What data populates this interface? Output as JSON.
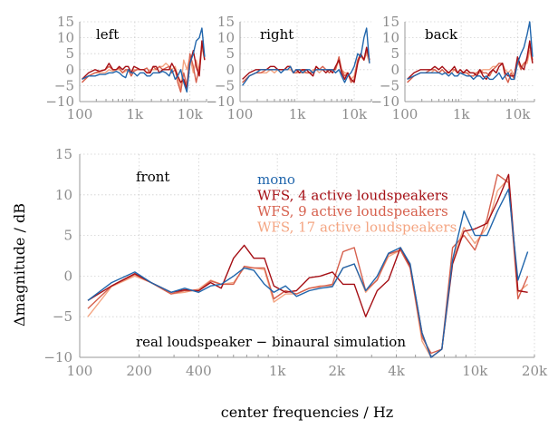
{
  "chart_data": {
    "type": "line",
    "xscale": "log",
    "colors": {
      "mono": "#2166ac",
      "wfs4": "#a50f15",
      "wfs9": "#d6604d",
      "wfs17": "#f4a582"
    },
    "series_labels": {
      "mono": "mono",
      "wfs4": "WFS, 4 active loudspeakers",
      "wfs9": "WFS, 9 active loudspeakers",
      "wfs17": "WFS, 17 active loudspeakers"
    },
    "x": [
      110,
      145,
      190,
      230,
      290,
      340,
      400,
      460,
      520,
      600,
      680,
      760,
      860,
      960,
      1100,
      1250,
      1450,
      1650,
      1900,
      2150,
      2450,
      2800,
      3200,
      3650,
      4200,
      4700,
      5400,
      6000,
      6800,
      7700,
      8800,
      10000,
      11500,
      13000,
      14800,
      16500,
      18500
    ],
    "small_xlim": [
      100,
      20000
    ],
    "small_ylim": [
      -10,
      15
    ],
    "small_yticks": [
      "15",
      "10",
      "5",
      "0",
      "−5",
      "−10"
    ],
    "small_xticks": [
      "100",
      "1k",
      "10k"
    ],
    "small_panels": [
      {
        "label": "left",
        "series": {
          "mono": [
            -3,
            -2,
            -2,
            -1.5,
            -1.5,
            -1,
            -1,
            -0.5,
            -1,
            -2,
            -2.5,
            0,
            -1,
            -1,
            -2,
            -1,
            -1,
            -2,
            -2,
            -1,
            -1,
            -1,
            -0.5,
            -1,
            -2,
            0,
            -3,
            -2,
            0,
            -4,
            -7,
            2,
            5,
            9,
            10,
            13,
            4
          ],
          "wfs4": [
            -3,
            -1,
            0,
            -0.5,
            0,
            2,
            0,
            0,
            1,
            0,
            1,
            1,
            -1,
            1,
            0.5,
            0,
            0,
            -1,
            -1,
            1,
            1,
            -1,
            0,
            0,
            0,
            2,
            0,
            -2,
            -4,
            -3,
            -6,
            2,
            6,
            1,
            -2,
            9,
            3
          ],
          "wfs9": [
            -4,
            -2,
            -1,
            -0.5,
            0,
            1,
            0,
            0,
            0.5,
            -1,
            0,
            0,
            -2,
            -0.5,
            0,
            0,
            0,
            0.5,
            -1,
            1,
            0,
            1,
            0,
            0.5,
            1,
            -1,
            0,
            -4,
            -7,
            -1,
            -5,
            5,
            1,
            -4,
            1,
            8,
            4
          ],
          "wfs17": [
            -4,
            -2,
            -1,
            -1,
            -1,
            0,
            -0.5,
            0,
            0,
            -1,
            -0.5,
            0,
            -2,
            0,
            0,
            0,
            0,
            -1,
            0,
            0,
            0,
            1,
            1,
            2,
            1,
            0,
            1,
            -2,
            -6,
            3,
            0,
            4,
            -1,
            3,
            -1,
            7,
            3
          ]
        }
      },
      {
        "label": "right",
        "series": {
          "mono": [
            -5,
            -2,
            -1,
            0,
            0,
            0,
            0,
            0,
            -1,
            0,
            0,
            1,
            -1,
            0,
            0,
            -1,
            0,
            0,
            -1,
            0,
            0,
            0,
            0,
            0,
            0,
            -1,
            0,
            -2,
            -4,
            -2,
            -1,
            1,
            5,
            4,
            10,
            13,
            2
          ],
          "wfs4": [
            -3,
            -1,
            0,
            0,
            0,
            1,
            1,
            0,
            0,
            0,
            1,
            1,
            -1,
            0,
            -1,
            0,
            0,
            -1,
            -2,
            1,
            0,
            0,
            -1,
            0,
            -1,
            1,
            3,
            -1,
            -3,
            -1,
            -3,
            -4,
            2,
            5,
            3,
            7,
            3
          ],
          "wfs9": [
            -4,
            -2,
            -1,
            -1,
            0,
            0,
            0,
            0,
            0,
            0,
            1,
            1,
            -1,
            -1,
            0,
            0,
            -1,
            -1,
            -1,
            1,
            0,
            1,
            0,
            -1,
            0,
            0,
            4,
            0,
            -2,
            -1,
            -4,
            -3,
            3,
            5,
            3,
            6,
            3
          ],
          "wfs17": [
            -4,
            -2,
            -1,
            -1,
            -1,
            0,
            -1,
            0,
            0,
            0,
            0,
            0,
            -1,
            -1,
            -1,
            -1,
            -1,
            -1,
            0,
            0,
            -1,
            0,
            0,
            0,
            0,
            0,
            3,
            0,
            -1,
            -1,
            -3,
            -2,
            3,
            4,
            3,
            5,
            2
          ]
        }
      },
      {
        "label": "back",
        "series": {
          "mono": [
            -3,
            -2,
            -1,
            -1,
            -1,
            -1,
            -1,
            -1.5,
            -1,
            -2,
            -1,
            -2,
            -2,
            -1,
            -1.5,
            -2,
            -2,
            -3,
            -2,
            -2,
            -3,
            -2,
            -3,
            -3,
            -2,
            -1,
            -3,
            -2,
            -1,
            -3,
            -3,
            2,
            5,
            7,
            11,
            15,
            4
          ],
          "wfs4": [
            -3,
            -1,
            0,
            0,
            0,
            1,
            0,
            1,
            0,
            -1,
            0,
            1,
            -1,
            0,
            -1,
            0,
            -1,
            -1,
            -2,
            0,
            -2,
            -3,
            -1,
            0,
            -1,
            1,
            2,
            -1,
            -2,
            -2,
            -2,
            4,
            1,
            0,
            4,
            9,
            2
          ],
          "wfs9": [
            -4,
            -2,
            -1,
            -1,
            0,
            0,
            -1,
            0,
            -1,
            -1,
            0,
            0,
            -1,
            -1,
            -1,
            -1,
            -2,
            -2,
            -1,
            0,
            -1,
            -1,
            -2,
            0,
            1,
            2,
            2,
            -2,
            -4,
            -1,
            -3,
            3,
            0,
            2,
            3,
            8,
            3
          ],
          "wfs17": [
            -4,
            -2,
            -1,
            -1,
            -1,
            0,
            -1,
            0,
            -1,
            -1,
            -1,
            0,
            -1,
            -1,
            -1,
            -1,
            -1,
            -1,
            -1,
            -1,
            0,
            0,
            0,
            1,
            1,
            2,
            2,
            0,
            -1,
            0,
            -2,
            2,
            1,
            2,
            2,
            6,
            2
          ]
        }
      }
    ],
    "main_panel": {
      "label": "front",
      "annotation": "real loudspeaker − binaural simulation",
      "xlabel": "center frequencies / Hz",
      "ylabel": "Δmagnitude / dB",
      "xlim": [
        100,
        20000
      ],
      "ylim": [
        -10,
        15
      ],
      "yticks": [
        "15",
        "10",
        "5",
        "0",
        "−5",
        "−10"
      ],
      "xticks": [
        {
          "v": 100,
          "label": "100"
        },
        {
          "v": 200,
          "label": "200"
        },
        {
          "v": 400,
          "label": "400"
        },
        {
          "v": 1000,
          "label": "1k"
        },
        {
          "v": 2000,
          "label": "2k"
        },
        {
          "v": 4000,
          "label": "4k"
        },
        {
          "v": 10000,
          "label": "10k"
        },
        {
          "v": 20000,
          "label": "20k"
        }
      ],
      "x": [
        110,
        145,
        190,
        230,
        290,
        340,
        400,
        460,
        520,
        600,
        680,
        760,
        860,
        960,
        1100,
        1250,
        1450,
        1650,
        1900,
        2150,
        2450,
        2800,
        3200,
        3650,
        4200,
        4700,
        5400,
        6000,
        6800,
        7700,
        8800,
        10000,
        11500,
        13000,
        14800,
        16500,
        18500
      ],
      "series": {
        "mono": [
          -3,
          -0.8,
          0.5,
          -0.8,
          -2,
          -1.5,
          -2,
          -1.2,
          -1,
          0,
          1,
          0.7,
          -1,
          -2,
          -1.2,
          -2.5,
          -1.8,
          -1.5,
          -1.3,
          1,
          1.5,
          -1.8,
          0,
          2.8,
          3.5,
          1.5,
          -7,
          -10,
          -9,
          2,
          8,
          5,
          5,
          8,
          10.7,
          -0.5,
          3
        ],
        "wfs4": [
          -3,
          -1.2,
          0.3,
          -0.8,
          -2,
          -1.7,
          -1.8,
          -0.8,
          -1.5,
          2.2,
          3.8,
          2.2,
          2.2,
          -1.2,
          -2,
          -1.8,
          -0.2,
          0,
          0.5,
          -1,
          -1,
          -5,
          -1.8,
          -0.5,
          3.5,
          1.3,
          -7,
          -10,
          -9,
          1.5,
          5.5,
          5.8,
          6.5,
          9.2,
          12.5,
          -1.8,
          -2
        ],
        "wfs9": [
          -4,
          -1.2,
          0.2,
          -0.8,
          -2.2,
          -1.8,
          -1.8,
          -0.6,
          -1,
          -1,
          1.2,
          1,
          1,
          -2.8,
          -1.8,
          -2.2,
          -1.5,
          -1.3,
          -1,
          3,
          3.5,
          -1.8,
          -0.5,
          2.7,
          3.2,
          1,
          -7.5,
          -9.5,
          -9,
          3.5,
          5,
          3.2,
          7,
          12.5,
          11.5,
          -2.8,
          0
        ],
        "wfs17": [
          -5,
          -1.3,
          0,
          -0.8,
          -2.2,
          -2,
          -1.6,
          -0.5,
          -1,
          -0.8,
          1,
          1,
          0.8,
          -3.2,
          -2.2,
          -2.2,
          -1.5,
          -1.2,
          -1.2,
          1,
          1.5,
          -2,
          -0.4,
          2.4,
          3.2,
          1,
          -8,
          -10,
          -9,
          2,
          6,
          4,
          6,
          10.5,
          12,
          -2,
          -1
        ]
      }
    }
  }
}
